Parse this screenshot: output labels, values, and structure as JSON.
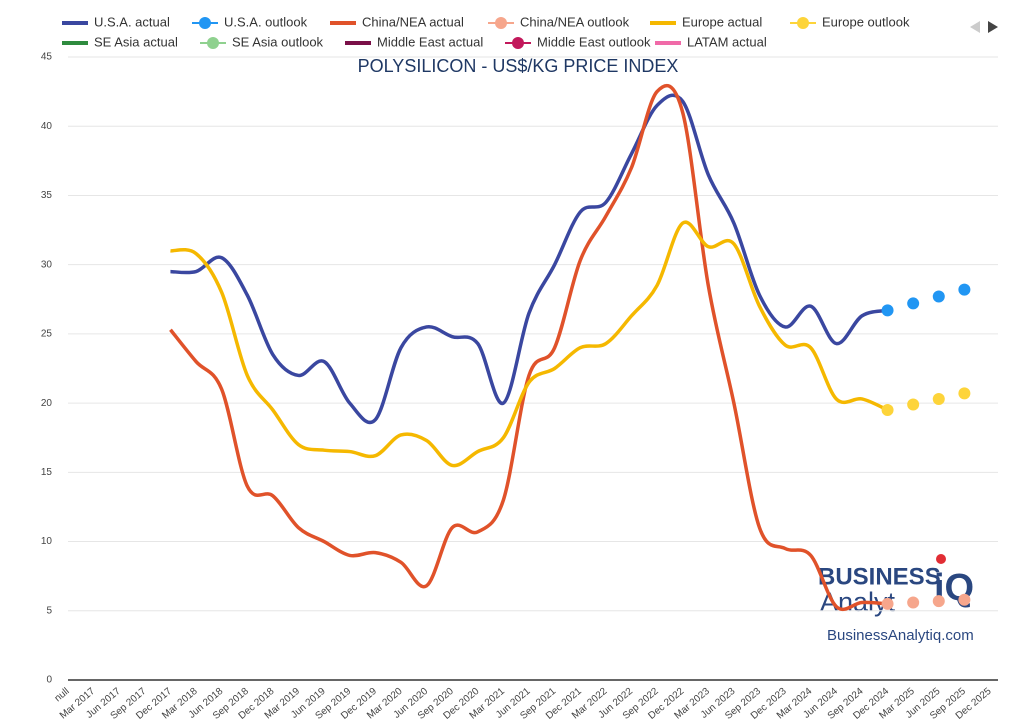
{
  "chart_data": {
    "type": "line",
    "title": "POLYSILICON - US$/KG PRICE INDEX",
    "watermark": {
      "brand1": "BUSINESS",
      "brand2": "Analyt",
      "brand3": "iQ",
      "url": "BusinessAnalytiq.com"
    },
    "categories": [
      "null",
      "Mar 2017",
      "Jun 2017",
      "Sep 2017",
      "Dec 2017",
      "Mar 2018",
      "Jun 2018",
      "Sep 2018",
      "Dec 2018",
      "Mar 2019",
      "Jun 2019",
      "Sep 2019",
      "Dec 2019",
      "Mar 2020",
      "Jun 2020",
      "Sep 2020",
      "Dec 2020",
      "Mar 2021",
      "Jun 2021",
      "Sep 2021",
      "Dec 2021",
      "Mar 2022",
      "Jun 2022",
      "Sep 2022",
      "Dec 2022",
      "Mar 2023",
      "Jun 2023",
      "Sep 2023",
      "Dec 2023",
      "Mar 2024",
      "Jun 2024",
      "Sep 2024",
      "Dec 2024",
      "Mar 2025",
      "Jun 2025",
      "Sep 2025",
      "Dec 2025"
    ],
    "ylim": [
      0,
      45
    ],
    "yticks": [
      0,
      5,
      10,
      15,
      20,
      25,
      30,
      35,
      40,
      45
    ],
    "grid": true,
    "legend": "top",
    "series": [
      {
        "name": "U.S.A. actual",
        "color": "#3a47a0",
        "style": "line",
        "values": [
          null,
          null,
          null,
          null,
          29.5,
          29.5,
          30.5,
          27.8,
          23.5,
          22,
          23,
          20,
          18.8,
          24,
          25.5,
          24.8,
          24.3,
          20,
          26.5,
          30,
          33.8,
          34.5,
          38,
          41.5,
          41.8,
          36.5,
          33,
          27.8,
          25.5,
          27,
          24.3,
          26.3,
          26.7,
          null,
          null,
          null,
          null
        ]
      },
      {
        "name": "U.S.A. outlook",
        "color": "#2196f3",
        "style": "dots",
        "values": [
          null,
          null,
          null,
          null,
          null,
          null,
          null,
          null,
          null,
          null,
          null,
          null,
          null,
          null,
          null,
          null,
          null,
          null,
          null,
          null,
          null,
          null,
          null,
          null,
          null,
          null,
          null,
          null,
          null,
          null,
          null,
          null,
          26.7,
          27.2,
          27.7,
          28.2,
          null
        ]
      },
      {
        "name": "China/NEA actual",
        "color": "#e0522a",
        "style": "line",
        "values": [
          null,
          null,
          null,
          null,
          25.3,
          23,
          21,
          14,
          13.3,
          11,
          10,
          9,
          9.2,
          8.5,
          6.8,
          11,
          10.7,
          13,
          22,
          24,
          30.3,
          33.5,
          37,
          42.5,
          41,
          28.5,
          20,
          11,
          9.5,
          9,
          5.3,
          5.6,
          5.5,
          null,
          null,
          null,
          null
        ]
      },
      {
        "name": "China/NEA outlook",
        "color": "#f6a68c",
        "style": "dots",
        "values": [
          null,
          null,
          null,
          null,
          null,
          null,
          null,
          null,
          null,
          null,
          null,
          null,
          null,
          null,
          null,
          null,
          null,
          null,
          null,
          null,
          null,
          null,
          null,
          null,
          null,
          null,
          null,
          null,
          null,
          null,
          null,
          null,
          5.5,
          5.6,
          5.7,
          5.8,
          null
        ]
      },
      {
        "name": "Europe actual",
        "color": "#f5b800",
        "style": "line",
        "values": [
          null,
          null,
          null,
          null,
          31,
          30.8,
          28,
          22,
          19.5,
          17,
          16.6,
          16.5,
          16.2,
          17.7,
          17.3,
          15.5,
          16.5,
          17.5,
          21.5,
          22.5,
          24,
          24.3,
          26.3,
          28.5,
          33,
          31.3,
          31.5,
          27,
          24.2,
          24,
          20.3,
          20.3,
          19.5,
          null,
          null,
          null,
          null
        ]
      },
      {
        "name": "Europe outlook",
        "color": "#fdd43a",
        "style": "dots",
        "values": [
          null,
          null,
          null,
          null,
          null,
          null,
          null,
          null,
          null,
          null,
          null,
          null,
          null,
          null,
          null,
          null,
          null,
          null,
          null,
          null,
          null,
          null,
          null,
          null,
          null,
          null,
          null,
          null,
          null,
          null,
          null,
          null,
          19.5,
          19.9,
          20.3,
          20.7,
          null
        ]
      },
      {
        "name": "SE Asia actual",
        "color": "#2e8b3e",
        "style": "line",
        "values": [
          null,
          null,
          null,
          null,
          null,
          null,
          null,
          null,
          null,
          null,
          null,
          null,
          null,
          null,
          null,
          null,
          null,
          null,
          null,
          null,
          null,
          null,
          null,
          null,
          null,
          null,
          null,
          null,
          null,
          null,
          null,
          null,
          null,
          null,
          null,
          null,
          null
        ]
      },
      {
        "name": "SE Asia outlook",
        "color": "#8fd18f",
        "style": "dots",
        "values": [
          null,
          null,
          null,
          null,
          null,
          null,
          null,
          null,
          null,
          null,
          null,
          null,
          null,
          null,
          null,
          null,
          null,
          null,
          null,
          null,
          null,
          null,
          null,
          null,
          null,
          null,
          null,
          null,
          null,
          null,
          null,
          null,
          null,
          null,
          null,
          null,
          null
        ]
      },
      {
        "name": "Middle East actual",
        "color": "#7a1048",
        "style": "line",
        "values": [
          null,
          null,
          null,
          null,
          null,
          null,
          null,
          null,
          null,
          null,
          null,
          null,
          null,
          null,
          null,
          null,
          null,
          null,
          null,
          null,
          null,
          null,
          null,
          null,
          null,
          null,
          null,
          null,
          null,
          null,
          null,
          null,
          null,
          null,
          null,
          null,
          null
        ]
      },
      {
        "name": "Middle East outlook",
        "color": "#c2185b",
        "style": "dots",
        "values": [
          null,
          null,
          null,
          null,
          null,
          null,
          null,
          null,
          null,
          null,
          null,
          null,
          null,
          null,
          null,
          null,
          null,
          null,
          null,
          null,
          null,
          null,
          null,
          null,
          null,
          null,
          null,
          null,
          null,
          null,
          null,
          null,
          null,
          null,
          null,
          null,
          null
        ]
      },
      {
        "name": "LATAM actual",
        "color": "#f06aa8",
        "style": "line",
        "values": [
          null,
          null,
          null,
          null,
          null,
          null,
          null,
          null,
          null,
          null,
          null,
          null,
          null,
          null,
          null,
          null,
          null,
          null,
          null,
          null,
          null,
          null,
          null,
          null,
          null,
          null,
          null,
          null,
          null,
          null,
          null,
          null,
          null,
          null,
          null,
          null,
          null
        ]
      }
    ]
  }
}
